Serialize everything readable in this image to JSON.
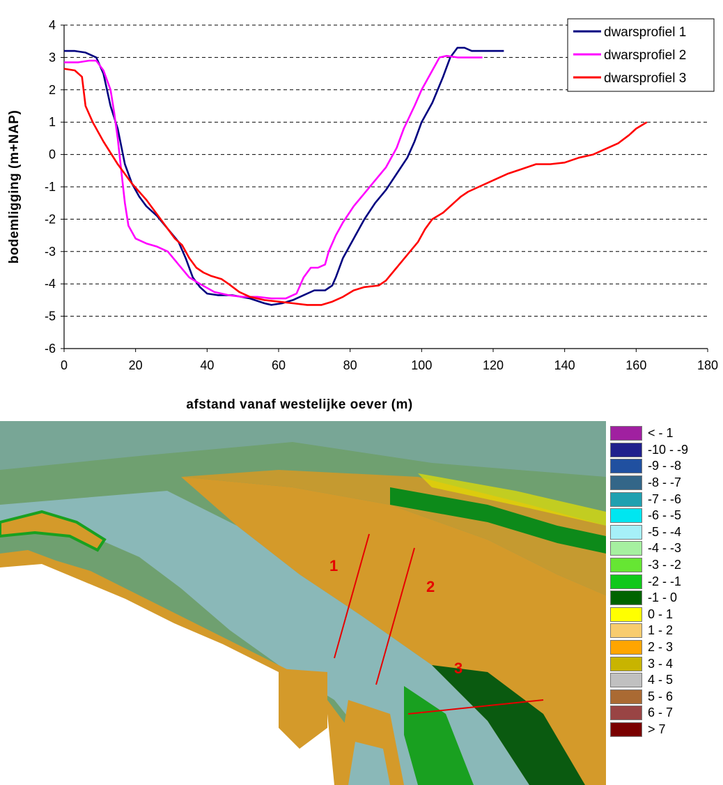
{
  "chart_data": {
    "type": "line",
    "xlabel": "afstand vanaf westelijke oever (m)",
    "ylabel": "bodemligging (m+NAP)",
    "xlim": [
      0,
      180
    ],
    "ylim": [
      -6,
      4
    ],
    "x_ticks": [
      0,
      20,
      40,
      60,
      80,
      100,
      120,
      140,
      160,
      180
    ],
    "y_ticks": [
      4,
      3,
      2,
      1,
      0,
      -1,
      -2,
      -3,
      -4,
      -5,
      -6
    ],
    "grid": "horizontal dashed",
    "legend_position": "top-right",
    "series": [
      {
        "name": "dwarsprofiel 1",
        "color": "#000080",
        "points": [
          [
            0,
            3.2
          ],
          [
            3,
            3.2
          ],
          [
            6,
            3.15
          ],
          [
            9,
            3.0
          ],
          [
            11,
            2.5
          ],
          [
            13,
            1.5
          ],
          [
            15,
            0.8
          ],
          [
            17,
            -0.3
          ],
          [
            19,
            -0.9
          ],
          [
            21,
            -1.3
          ],
          [
            23,
            -1.6
          ],
          [
            26,
            -1.9
          ],
          [
            29,
            -2.3
          ],
          [
            32,
            -2.7
          ],
          [
            34,
            -3.2
          ],
          [
            36,
            -3.8
          ],
          [
            38,
            -4.1
          ],
          [
            40,
            -4.3
          ],
          [
            43,
            -4.35
          ],
          [
            47,
            -4.35
          ],
          [
            52,
            -4.45
          ],
          [
            56,
            -4.6
          ],
          [
            58,
            -4.65
          ],
          [
            61,
            -4.6
          ],
          [
            64,
            -4.5
          ],
          [
            67,
            -4.35
          ],
          [
            70,
            -4.2
          ],
          [
            73,
            -4.2
          ],
          [
            75,
            -4.05
          ],
          [
            76,
            -3.8
          ],
          [
            78,
            -3.2
          ],
          [
            81,
            -2.6
          ],
          [
            84,
            -2.0
          ],
          [
            87,
            -1.5
          ],
          [
            90,
            -1.1
          ],
          [
            93,
            -0.6
          ],
          [
            96,
            -0.1
          ],
          [
            98,
            0.4
          ],
          [
            100,
            1.0
          ],
          [
            103,
            1.6
          ],
          [
            106,
            2.4
          ],
          [
            108,
            3.0
          ],
          [
            110,
            3.3
          ],
          [
            112,
            3.3
          ],
          [
            114,
            3.2
          ],
          [
            117,
            3.2
          ],
          [
            120,
            3.2
          ],
          [
            123,
            3.2
          ]
        ]
      },
      {
        "name": "dwarsprofiel 2",
        "color": "#ff00ff",
        "points": [
          [
            0,
            2.85
          ],
          [
            4,
            2.85
          ],
          [
            7,
            2.9
          ],
          [
            9,
            2.9
          ],
          [
            11,
            2.6
          ],
          [
            13,
            2.0
          ],
          [
            14,
            1.3
          ],
          [
            15,
            0.5
          ],
          [
            16,
            -0.5
          ],
          [
            17,
            -1.5
          ],
          [
            18,
            -2.2
          ],
          [
            20,
            -2.6
          ],
          [
            23,
            -2.75
          ],
          [
            26,
            -2.85
          ],
          [
            29,
            -3.0
          ],
          [
            32,
            -3.4
          ],
          [
            35,
            -3.8
          ],
          [
            38,
            -4.0
          ],
          [
            42,
            -4.25
          ],
          [
            46,
            -4.35
          ],
          [
            50,
            -4.4
          ],
          [
            54,
            -4.4
          ],
          [
            58,
            -4.45
          ],
          [
            62,
            -4.45
          ],
          [
            65,
            -4.3
          ],
          [
            67,
            -3.8
          ],
          [
            69,
            -3.5
          ],
          [
            71,
            -3.5
          ],
          [
            73,
            -3.4
          ],
          [
            74,
            -3.0
          ],
          [
            76,
            -2.5
          ],
          [
            78,
            -2.1
          ],
          [
            81,
            -1.6
          ],
          [
            84,
            -1.2
          ],
          [
            87,
            -0.8
          ],
          [
            90,
            -0.4
          ],
          [
            93,
            0.2
          ],
          [
            95,
            0.8
          ],
          [
            98,
            1.5
          ],
          [
            100,
            2.0
          ],
          [
            103,
            2.6
          ],
          [
            105,
            3.0
          ],
          [
            107,
            3.05
          ],
          [
            110,
            3.0
          ],
          [
            114,
            3.0
          ],
          [
            117,
            3.0
          ]
        ]
      },
      {
        "name": "dwarsprofiel 3",
        "color": "#ff0000",
        "points": [
          [
            0,
            2.65
          ],
          [
            3,
            2.6
          ],
          [
            5,
            2.4
          ],
          [
            6,
            1.5
          ],
          [
            8,
            1.0
          ],
          [
            11,
            0.4
          ],
          [
            15,
            -0.3
          ],
          [
            19,
            -0.9
          ],
          [
            23,
            -1.4
          ],
          [
            27,
            -2.0
          ],
          [
            31,
            -2.6
          ],
          [
            33,
            -2.8
          ],
          [
            35,
            -3.2
          ],
          [
            37,
            -3.5
          ],
          [
            39,
            -3.65
          ],
          [
            41,
            -3.75
          ],
          [
            44,
            -3.85
          ],
          [
            46,
            -4.0
          ],
          [
            49,
            -4.25
          ],
          [
            52,
            -4.4
          ],
          [
            56,
            -4.5
          ],
          [
            60,
            -4.55
          ],
          [
            64,
            -4.6
          ],
          [
            68,
            -4.65
          ],
          [
            72,
            -4.65
          ],
          [
            75,
            -4.55
          ],
          [
            78,
            -4.4
          ],
          [
            81,
            -4.2
          ],
          [
            84,
            -4.1
          ],
          [
            88,
            -4.05
          ],
          [
            90,
            -3.9
          ],
          [
            93,
            -3.5
          ],
          [
            96,
            -3.1
          ],
          [
            99,
            -2.7
          ],
          [
            101,
            -2.3
          ],
          [
            103,
            -2.0
          ],
          [
            106,
            -1.8
          ],
          [
            109,
            -1.5
          ],
          [
            111,
            -1.3
          ],
          [
            113,
            -1.15
          ],
          [
            116,
            -1.0
          ],
          [
            120,
            -0.8
          ],
          [
            124,
            -0.6
          ],
          [
            128,
            -0.45
          ],
          [
            132,
            -0.3
          ],
          [
            136,
            -0.3
          ],
          [
            140,
            -0.25
          ],
          [
            144,
            -0.1
          ],
          [
            148,
            0.0
          ],
          [
            152,
            0.2
          ],
          [
            155,
            0.35
          ],
          [
            158,
            0.6
          ],
          [
            160,
            0.8
          ],
          [
            163,
            1.0
          ]
        ]
      }
    ]
  },
  "map": {
    "profile_labels": [
      "1",
      "2",
      "3"
    ],
    "legend": [
      {
        "label": "< - 1",
        "color": "#a020a0"
      },
      {
        "label": "-10 - -9",
        "color": "#20208c"
      },
      {
        "label": "-9 - -8",
        "color": "#2050a0"
      },
      {
        "label": "-8 - -7",
        "color": "#336688"
      },
      {
        "label": "-7 - -6",
        "color": "#20a0b0"
      },
      {
        "label": "-6 - -5",
        "color": "#00e6f0"
      },
      {
        "label": "-5 - -4",
        "color": "#a6f0f8"
      },
      {
        "label": "-4 - -3",
        "color": "#a6f0a0"
      },
      {
        "label": "-3 - -2",
        "color": "#66e633"
      },
      {
        "label": "-2 - -1",
        "color": "#10c81a"
      },
      {
        "label": "-1 - 0",
        "color": "#006400"
      },
      {
        "label": "0 - 1",
        "color": "#ffff00"
      },
      {
        "label": "1 - 2",
        "color": "#f8cc6e"
      },
      {
        "label": "2 - 3",
        "color": "#ffa500"
      },
      {
        "label": "3 - 4",
        "color": "#c8b400"
      },
      {
        "label": "4 - 5",
        "color": "#c0c0c0"
      },
      {
        "label": "5 - 6",
        "color": "#aa6a33"
      },
      {
        "label": "6 - 7",
        "color": "#994444"
      },
      {
        "label": "> 7",
        "color": "#7a0000"
      }
    ]
  }
}
